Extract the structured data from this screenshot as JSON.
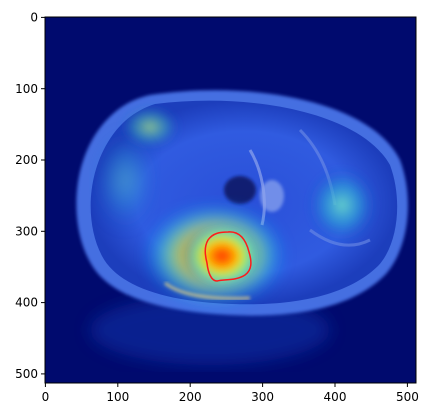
{
  "figure": {
    "x_ticks": [
      "0",
      "100",
      "200",
      "300",
      "400",
      "500"
    ],
    "y_ticks": [
      "0",
      "100",
      "200",
      "300",
      "400",
      "500"
    ],
    "colors": {
      "background": "#000a6e",
      "contour": "#ff1a1a",
      "axis": "#000000"
    },
    "image_content": "axial-brain-mri-with-gradcam-heatmap-overlay"
  }
}
